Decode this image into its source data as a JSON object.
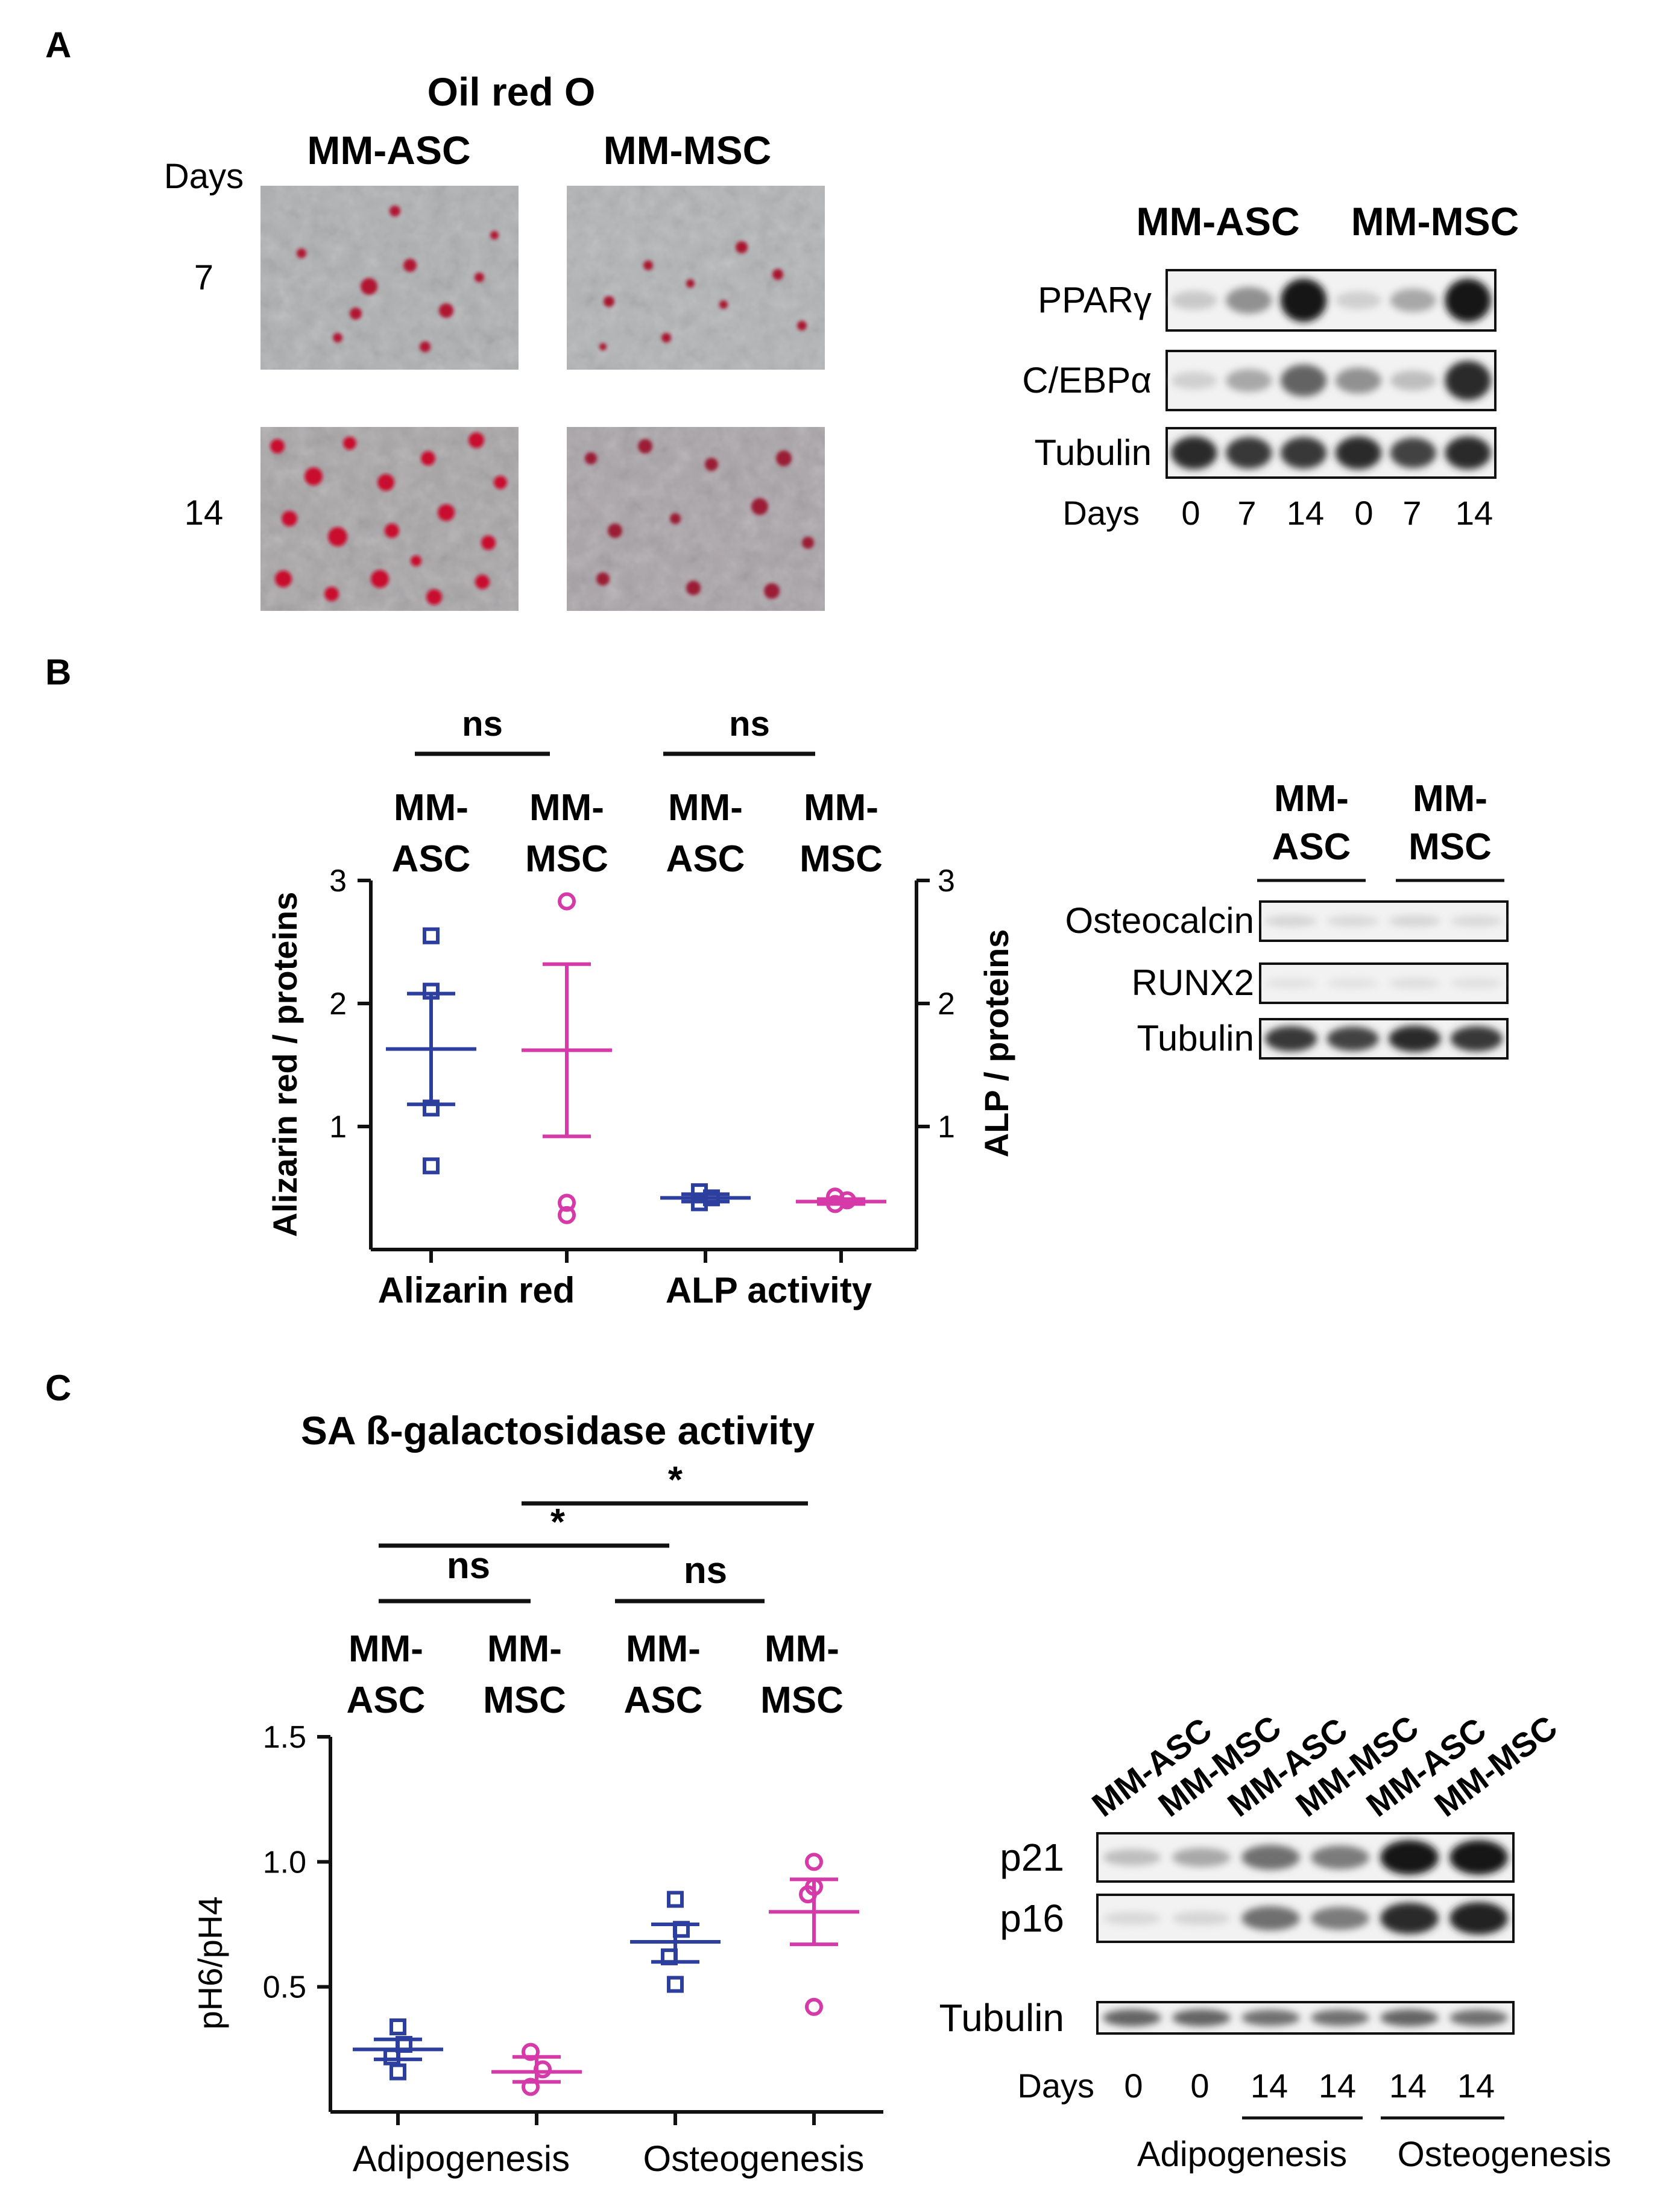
{
  "panelA": {
    "letter": "A",
    "stain_title": "Oil red O",
    "groups": [
      "MM-ASC",
      "MM-MSC"
    ],
    "days_label": "Days",
    "days": [
      "7",
      "14"
    ],
    "blot": {
      "groups": [
        "MM-ASC",
        "MM-MSC"
      ],
      "rows": [
        "PPARγ",
        "C/EBPα",
        "Tubulin"
      ],
      "days_label": "Days",
      "lanes": [
        "0",
        "7",
        "14",
        "0",
        "7",
        "14"
      ],
      "intensities": {
        "PPARγ": [
          0.15,
          0.4,
          0.95,
          0.12,
          0.3,
          0.95
        ],
        "C/EBPα": [
          0.12,
          0.3,
          0.6,
          0.4,
          0.2,
          0.85
        ],
        "Tubulin": [
          0.85,
          0.8,
          0.8,
          0.85,
          0.75,
          0.85
        ]
      }
    }
  },
  "panelB": {
    "letter": "B",
    "sig": [
      "ns",
      "ns"
    ],
    "groups": [
      [
        "MM-",
        "ASC"
      ],
      [
        "MM-",
        "MSC"
      ],
      [
        "MM-",
        "ASC"
      ],
      [
        "MM-",
        "MSC"
      ]
    ],
    "blot": {
      "groups": [
        [
          "MM-",
          "ASC"
        ],
        [
          "MM-",
          "MSC"
        ]
      ],
      "rows": [
        "Osteocalcin",
        "RUNX2",
        "Tubulin"
      ],
      "intensities": {
        "Osteocalcin": [
          0.1,
          0.08,
          0.1,
          0.08
        ],
        "RUNX2": [
          0.04,
          0.04,
          0.06,
          0.05
        ],
        "Tubulin": [
          0.8,
          0.75,
          0.85,
          0.8
        ]
      }
    }
  },
  "panelC": {
    "letter": "C",
    "title": "SA ß-galactosidase activity",
    "sig": [
      "*",
      "*",
      "ns",
      "ns"
    ],
    "groups": [
      [
        "MM-",
        "ASC"
      ],
      [
        "MM-",
        "MSC"
      ],
      [
        "MM-",
        "ASC"
      ],
      [
        "MM-",
        "MSC"
      ]
    ],
    "blot": {
      "lane_labels": [
        "MM-ASC",
        "MM-MSC",
        "MM-ASC",
        "MM-MSC",
        "MM-ASC",
        "MM-MSC"
      ],
      "rows": [
        "p21",
        "p16",
        "Tubulin"
      ],
      "days_label": "Days",
      "days": [
        "0",
        "0",
        "14",
        "14",
        "14",
        "14"
      ],
      "conditions": [
        "Adipogenesis",
        "Osteogenesis"
      ],
      "intensities": {
        "p21": [
          0.2,
          0.3,
          0.55,
          0.5,
          0.95,
          0.95
        ],
        "p16": [
          0.08,
          0.1,
          0.55,
          0.5,
          0.85,
          0.9
        ],
        "Tubulin": [
          0.6,
          0.6,
          0.55,
          0.55,
          0.6,
          0.55
        ]
      }
    }
  },
  "colors": {
    "asc": "#2c3e9e",
    "msc": "#d63aa8"
  },
  "chart_data": [
    {
      "type": "scatter",
      "categories": [
        "Alizarin red",
        "ALP activity"
      ],
      "ylabel": "Alizarin red / proteins",
      "y2label": "ALP / proteins",
      "ylim": [
        0,
        3
      ],
      "yticks": [
        1,
        2,
        3
      ],
      "series": [
        {
          "name": "MM-ASC",
          "category": "Alizarin red",
          "marker": "square",
          "points": [
            2.55,
            2.1,
            1.15,
            0.68
          ],
          "mean": 1.63,
          "sem": [
            1.18,
            2.08
          ]
        },
        {
          "name": "MM-MSC",
          "category": "Alizarin red",
          "marker": "circle",
          "points": [
            2.83,
            0.38,
            0.28
          ],
          "mean": 1.62,
          "sem": [
            0.92,
            2.32
          ]
        },
        {
          "name": "MM-ASC",
          "category": "ALP activity",
          "marker": "square",
          "points": [
            0.47,
            0.42,
            0.38
          ],
          "mean": 0.42,
          "sem": [
            0.39,
            0.45
          ]
        },
        {
          "name": "MM-MSC",
          "category": "ALP activity",
          "marker": "circle",
          "points": [
            0.43,
            0.4,
            0.37
          ],
          "mean": 0.39,
          "sem": [
            0.37,
            0.41
          ]
        }
      ]
    },
    {
      "type": "scatter",
      "categories": [
        "Adipogenesis",
        "Osteogenesis"
      ],
      "ylabel": "pH6/pH4",
      "ylim": [
        0,
        1.5
      ],
      "yticks": [
        "0.5",
        "1.0",
        "1.5"
      ],
      "series": [
        {
          "name": "MM-ASC",
          "category": "Adipogenesis",
          "marker": "square",
          "points": [
            0.34,
            0.27,
            0.22,
            0.16
          ],
          "mean": 0.25,
          "sem": [
            0.21,
            0.29
          ]
        },
        {
          "name": "MM-MSC",
          "category": "Adipogenesis",
          "marker": "circle",
          "points": [
            0.24,
            0.17,
            0.1
          ],
          "mean": 0.16,
          "sem": [
            0.12,
            0.22
          ]
        },
        {
          "name": "MM-ASC",
          "category": "Osteogenesis",
          "marker": "square",
          "points": [
            0.85,
            0.73,
            0.62,
            0.51
          ],
          "mean": 0.68,
          "sem": [
            0.6,
            0.75
          ]
        },
        {
          "name": "MM-MSC",
          "category": "Osteogenesis",
          "marker": "circle",
          "points": [
            1.0,
            0.9,
            0.87,
            0.42
          ],
          "mean": 0.8,
          "sem": [
            0.67,
            0.93
          ]
        }
      ]
    }
  ]
}
